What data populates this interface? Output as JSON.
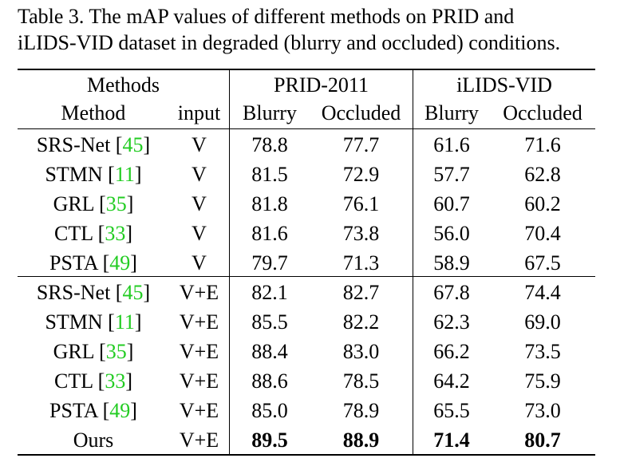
{
  "caption": {
    "line1": "Table 3.  The mAP values of different methods on PRID and",
    "line2": "iLIDS-VID dataset in degraded (blurry and occluded) conditions."
  },
  "header": {
    "group_methods": "Methods",
    "group_prid": "PRID-2011",
    "group_ilids": "iLIDS-VID",
    "col_method": "Method",
    "col_input": "input",
    "col_prid_blurry": "Blurry",
    "col_prid_occluded": "Occluded",
    "col_ilids_blurry": "Blurry",
    "col_ilids_occluded": "Occluded"
  },
  "rows": [
    {
      "name": "SRS-Net [",
      "ref": "45",
      "close": "]",
      "input": "V",
      "prid_blurry": "78.8",
      "prid_occluded": "77.7",
      "ilids_blurry": "61.6",
      "ilids_occluded": "71.6"
    },
    {
      "name": "STMN [",
      "ref": "11",
      "close": "]",
      "input": "V",
      "prid_blurry": "81.5",
      "prid_occluded": "72.9",
      "ilids_blurry": "57.7",
      "ilids_occluded": "62.8"
    },
    {
      "name": "GRL [",
      "ref": "35",
      "close": "]",
      "input": "V",
      "prid_blurry": "81.8",
      "prid_occluded": "76.1",
      "ilids_blurry": "60.7",
      "ilids_occluded": "60.2"
    },
    {
      "name": "CTL [",
      "ref": "33",
      "close": "]",
      "input": "V",
      "prid_blurry": "81.6",
      "prid_occluded": "73.8",
      "ilids_blurry": "56.0",
      "ilids_occluded": "70.4"
    },
    {
      "name": "PSTA [",
      "ref": "49",
      "close": "]",
      "input": "V",
      "prid_blurry": "79.7",
      "prid_occluded": "71.3",
      "ilids_blurry": "58.9",
      "ilids_occluded": "67.5"
    },
    {
      "name": "SRS-Net [",
      "ref": "45",
      "close": "]",
      "input": "V+E",
      "prid_blurry": "82.1",
      "prid_occluded": "82.7",
      "ilids_blurry": "67.8",
      "ilids_occluded": "74.4"
    },
    {
      "name": "STMN [",
      "ref": "11",
      "close": "]",
      "input": "V+E",
      "prid_blurry": "85.5",
      "prid_occluded": "82.2",
      "ilids_blurry": "62.3",
      "ilids_occluded": "69.0"
    },
    {
      "name": "GRL [",
      "ref": "35",
      "close": "]",
      "input": "V+E",
      "prid_blurry": "88.4",
      "prid_occluded": "83.0",
      "ilids_blurry": "66.2",
      "ilids_occluded": "73.5"
    },
    {
      "name": "CTL [",
      "ref": "33",
      "close": "]",
      "input": "V+E",
      "prid_blurry": "88.6",
      "prid_occluded": "78.5",
      "ilids_blurry": "64.2",
      "ilids_occluded": "75.9"
    },
    {
      "name": "PSTA [",
      "ref": "49",
      "close": "]",
      "input": "V+E",
      "prid_blurry": "85.0",
      "prid_occluded": "78.9",
      "ilids_blurry": "65.5",
      "ilids_occluded": "73.0"
    },
    {
      "name": "Ours",
      "ref": "",
      "close": "",
      "input": "V+E",
      "prid_blurry": "89.5",
      "prid_occluded": "88.9",
      "ilids_blurry": "71.4",
      "ilids_occluded": "80.7",
      "bold": true
    }
  ]
}
